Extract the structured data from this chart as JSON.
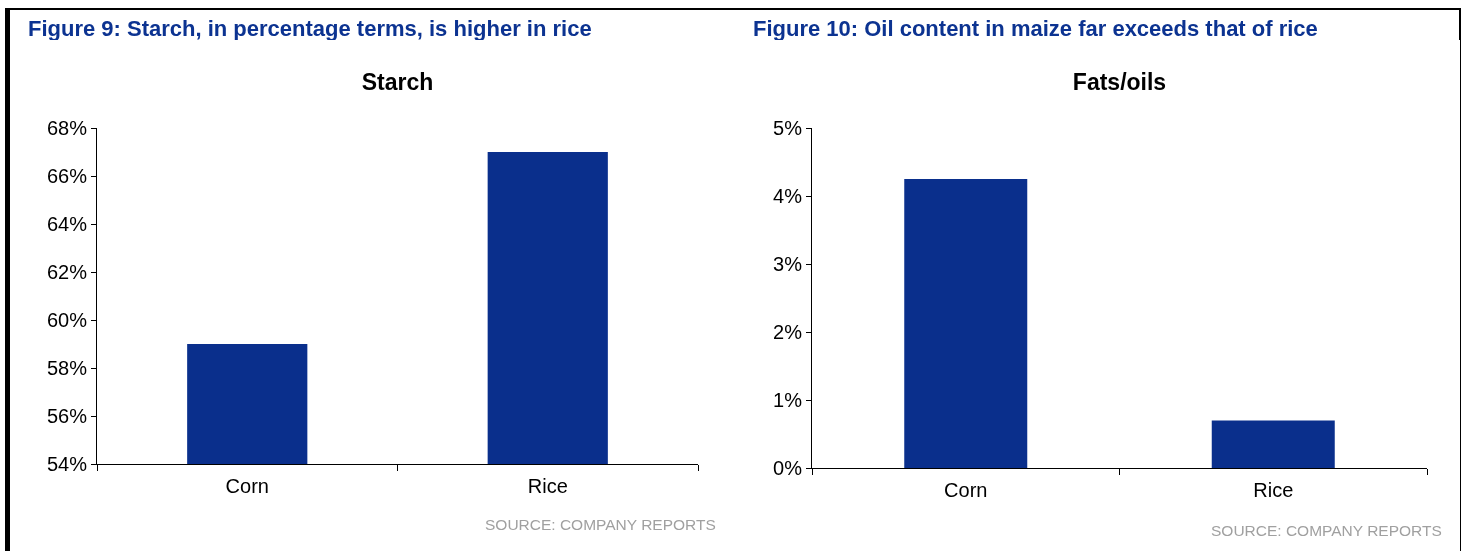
{
  "chart_data": [
    {
      "type": "bar",
      "title": "Figure 9: Starch, in percentage terms, is higher in rice",
      "subtitle": "Starch",
      "categories": [
        "Corn",
        "Rice"
      ],
      "values": [
        59,
        67
      ],
      "color": "#0a2f8c",
      "ylim": [
        54,
        68
      ],
      "yticks": [
        {
          "value": 54,
          "label": "54%"
        },
        {
          "value": 56,
          "label": "56%"
        },
        {
          "value": 58,
          "label": "58%"
        },
        {
          "value": 60,
          "label": "60%"
        },
        {
          "value": 62,
          "label": "62%"
        },
        {
          "value": 64,
          "label": "64%"
        },
        {
          "value": 66,
          "label": "66%"
        },
        {
          "value": 68,
          "label": "68%"
        }
      ],
      "annotations": [
        "SOURCE: COMPANY REPORTS"
      ]
    },
    {
      "type": "bar",
      "title": "Figure 10: Oil content in maize far exceeds that of rice",
      "subtitle": "Fats/oils",
      "categories": [
        "Corn",
        "Rice"
      ],
      "values": [
        4.25,
        0.7
      ],
      "color": "#0a2f8c",
      "ylim": [
        0,
        5
      ],
      "yticks": [
        {
          "value": 0,
          "label": "0%"
        },
        {
          "value": 1,
          "label": "1%"
        },
        {
          "value": 2,
          "label": "2%"
        },
        {
          "value": 3,
          "label": "3%"
        },
        {
          "value": 4,
          "label": "4%"
        },
        {
          "value": 5,
          "label": "5%"
        }
      ],
      "annotations": [
        "SOURCE: COMPANY REPORTS"
      ]
    }
  ]
}
